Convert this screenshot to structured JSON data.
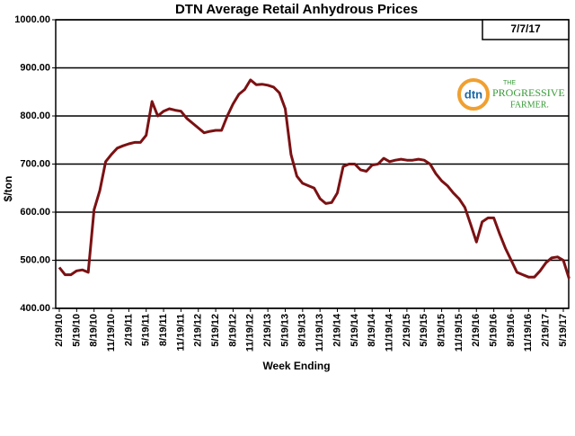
{
  "chart_data": {
    "type": "line",
    "title": "DTN Average Retail Anhydrous Prices",
    "x_label": "Week Ending",
    "y_label": "$/ton",
    "annotation": "7/7/17",
    "logo_text": [
      "dtn",
      "THE",
      "PROGRESSIVE",
      "FARMER."
    ],
    "categories": [
      "2/19/10",
      null,
      null,
      "5/19/10",
      null,
      null,
      "8/19/10",
      null,
      null,
      "11/19/10",
      null,
      null,
      "2/19/11",
      null,
      null,
      "5/19/11",
      null,
      null,
      "8/19/11",
      null,
      null,
      "11/19/11",
      null,
      null,
      "2/19/12",
      null,
      null,
      "5/19/12",
      null,
      null,
      "8/19/12",
      null,
      null,
      "11/19/12",
      null,
      null,
      "2/19/13",
      null,
      null,
      "5/19/13",
      null,
      null,
      "8/19/13",
      null,
      null,
      "11/19/13",
      null,
      null,
      "2/19/14",
      null,
      null,
      "5/19/14",
      null,
      null,
      "8/19/14",
      null,
      null,
      "11/19/14",
      null,
      null,
      "2/19/15",
      null,
      null,
      "5/19/15",
      null,
      null,
      "8/19/15",
      null,
      null,
      "11/19/15",
      null,
      null,
      "2/19/16",
      null,
      null,
      "5/19/16",
      null,
      null,
      "8/19/16",
      null,
      null,
      "11/19/16",
      null,
      null,
      "2/19/17",
      null,
      null,
      "5/19/17",
      null
    ],
    "series": [
      {
        "name": "Anhydrous",
        "color": "#7b1113",
        "values": [
          485,
          470,
          470,
          478,
          480,
          475,
          605,
          645,
          705,
          720,
          733,
          738,
          742,
          745,
          745,
          760,
          830,
          800,
          810,
          815,
          812,
          810,
          795,
          785,
          775,
          765,
          768,
          770,
          770,
          800,
          825,
          845,
          855,
          875,
          865,
          866,
          864,
          860,
          848,
          815,
          720,
          675,
          660,
          655,
          650,
          628,
          618,
          620,
          640,
          695,
          700,
          700,
          688,
          685,
          698,
          700,
          712,
          705,
          708,
          710,
          708,
          708,
          710,
          708,
          700,
          680,
          665,
          655,
          640,
          628,
          610,
          575,
          538,
          580,
          588,
          588,
          555,
          525,
          500,
          475,
          470,
          465,
          465,
          478,
          495,
          505,
          507,
          500,
          462
        ]
      }
    ],
    "ylim": [
      400,
      1000
    ],
    "yticks": [
      {
        "value": 400,
        "label": "400.00"
      },
      {
        "value": 500,
        "label": "500.00"
      },
      {
        "value": 600,
        "label": "600.00"
      },
      {
        "value": 700,
        "label": "700.00"
      },
      {
        "value": 800,
        "label": "800.00"
      },
      {
        "value": 900,
        "label": "900.00"
      },
      {
        "value": 1000,
        "label": "1000.00"
      }
    ],
    "grid": true
  }
}
